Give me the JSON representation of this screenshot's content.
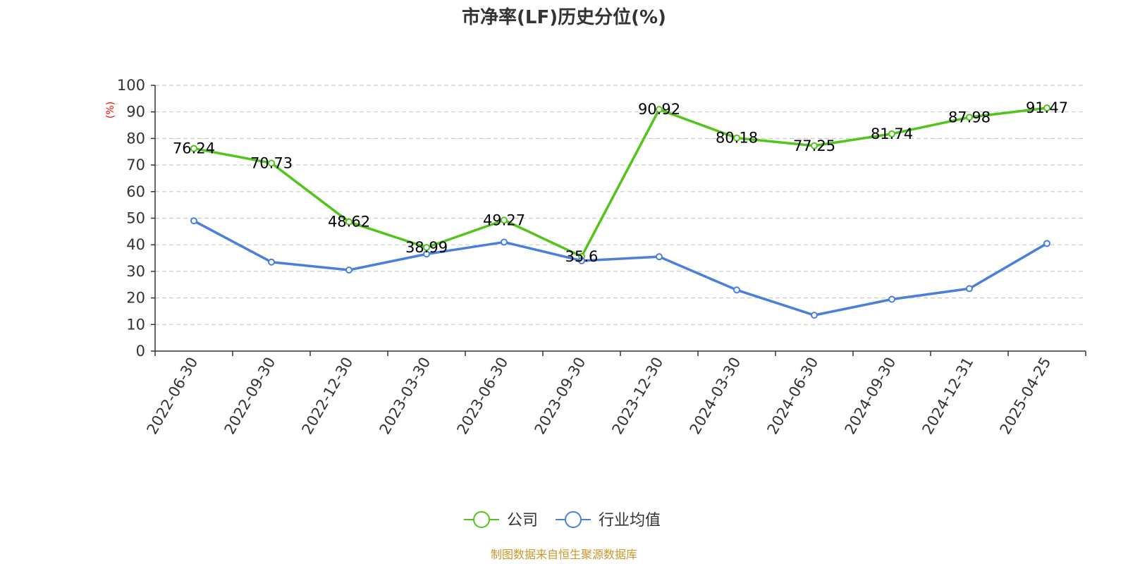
{
  "chart_data": {
    "type": "line",
    "title": "市净率(LF)历史分位(%)",
    "ylabel": "(%)",
    "xlabel": "",
    "categories": [
      "2022-06-30",
      "2022-09-30",
      "2022-12-30",
      "2023-03-30",
      "2023-06-30",
      "2023-09-30",
      "2023-12-30",
      "2024-03-30",
      "2024-06-30",
      "2024-09-30",
      "2024-12-31",
      "2025-04-25"
    ],
    "ylim": [
      0,
      100
    ],
    "yticks": [
      "0",
      "10",
      "20",
      "30",
      "40",
      "50",
      "60",
      "70",
      "80",
      "90",
      "100"
    ],
    "grid": true,
    "legend_position": "bottom",
    "series": [
      {
        "name": "公司",
        "color": "#52c41a",
        "values": [
          76.24,
          70.73,
          48.62,
          38.99,
          49.27,
          35.6,
          90.92,
          80.18,
          77.25,
          81.74,
          87.98,
          91.47
        ],
        "labels": [
          "76.24",
          "70.73",
          "48.62",
          "38.99",
          "49.27",
          "35.6",
          "90.92",
          "80.18",
          "77.25",
          "81.74",
          "87.98",
          "91.47"
        ]
      },
      {
        "name": "行业均值",
        "color": "#4a7fdc",
        "values": [
          49.0,
          33.5,
          30.5,
          36.5,
          41.0,
          34.0,
          35.5,
          23.0,
          13.5,
          19.5,
          23.5,
          40.5
        ]
      }
    ],
    "source": "制图数据来自恒生聚源数据库"
  }
}
